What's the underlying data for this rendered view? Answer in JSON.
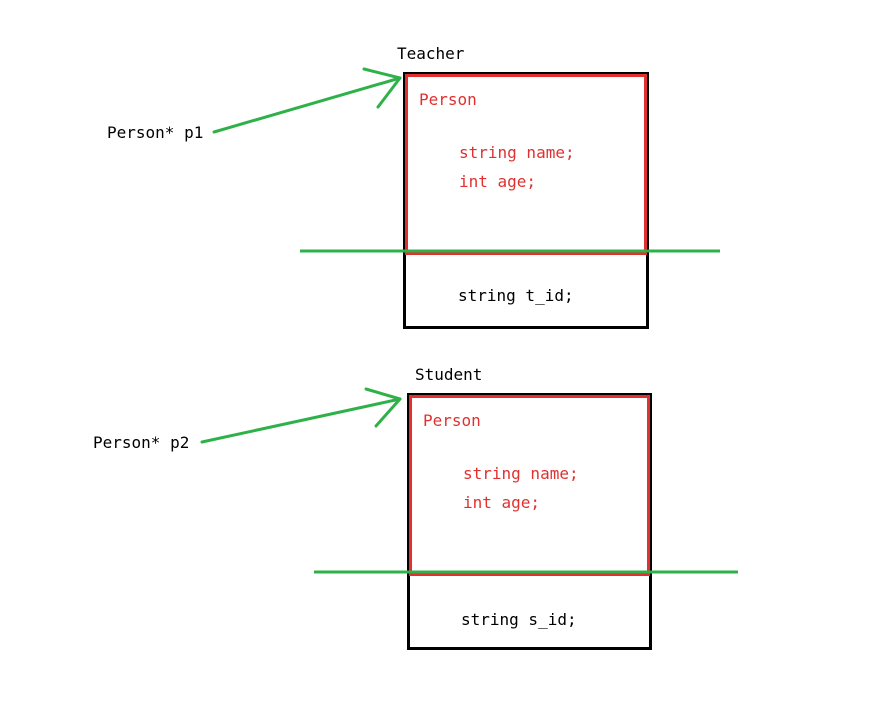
{
  "colors": {
    "arrow": "#2fb14a",
    "divider": "#2fb14a",
    "base_class_border": "#e03030",
    "base_class_text": "#e03030",
    "object_border": "#000000",
    "text": "#000000"
  },
  "objects": [
    {
      "title": "Teacher",
      "pointer_label": "Person* p1",
      "base_class": {
        "name": "Person",
        "members": [
          "string name;",
          "int age;"
        ]
      },
      "own_member": "string t_id;"
    },
    {
      "title": "Student",
      "pointer_label": "Person* p2",
      "base_class": {
        "name": "Person",
        "members": [
          "string name;",
          "int age;"
        ]
      },
      "own_member": "string s_id;"
    }
  ]
}
